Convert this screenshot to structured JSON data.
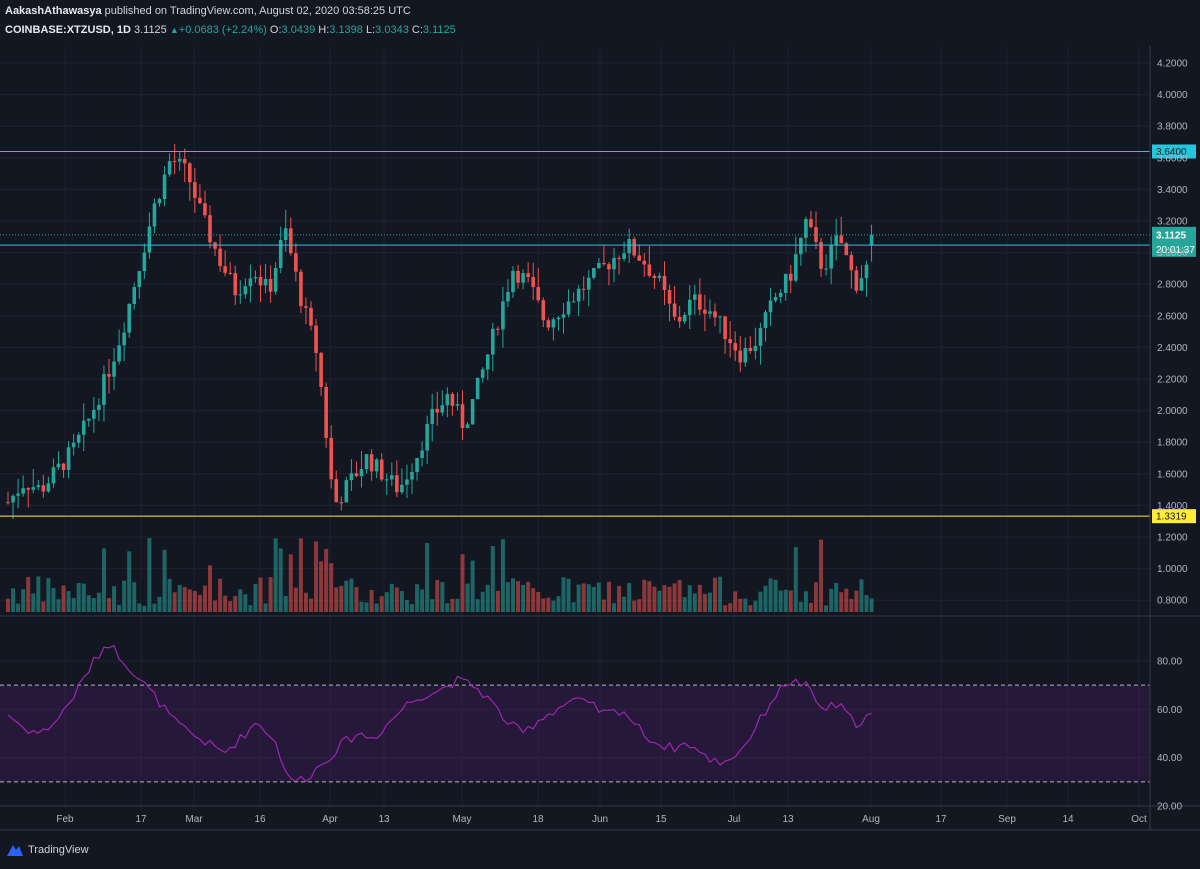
{
  "header": {
    "author": "AakashAthawasya",
    "published_text": " published on TradingView.com, August 02, 2020 03:58:25 UTC",
    "symbol": "COINBASE:XTZUSD, 1D",
    "last": "3.1125",
    "change": "+0.0683 (+2.24%)",
    "open_label": "O:",
    "open": "3.0439",
    "high_label": "H:",
    "high": "3.1398",
    "low_label": "L:",
    "low": "3.0343",
    "close_label": "C:",
    "close": "3.1125"
  },
  "footer": {
    "brand": "TradingView",
    "icon": "tradingview-logo-icon"
  },
  "colors": {
    "background": "#131722",
    "up": "#26a69a",
    "down": "#ef5350",
    "resistance": "#26c6da",
    "support": "#ffeb3b",
    "rsi": "#9c27b0"
  },
  "chart_data": {
    "type": "candlestick",
    "symbol": "COINBASE:XTZUSD",
    "interval": "1D",
    "x_ticks": [
      "Feb",
      "17",
      "Mar",
      "16",
      "Apr",
      "13",
      "May",
      "18",
      "Jun",
      "15",
      "Jul",
      "13",
      "Aug",
      "17",
      "Sep",
      "14",
      "Oct"
    ],
    "price_ticks": [
      "4.2000",
      "4.0000",
      "3.8000",
      "3.6000",
      "3.4000",
      "3.2000",
      "3.0000",
      "2.8000",
      "2.6000",
      "2.4000",
      "2.2000",
      "2.0000",
      "1.8000",
      "1.6000",
      "1.4000",
      "1.2000",
      "1.0000",
      "0.8000"
    ],
    "price_range": [
      0.8,
      4.2
    ],
    "horizontal_levels": [
      {
        "value": 3.64,
        "label": "3.6400",
        "color": "#26c6da"
      },
      {
        "value": 3.0477,
        "label": "3.0477",
        "color": "#26c6da"
      },
      {
        "value": 1.3319,
        "label": "1.3319",
        "color": "#ffeb3b"
      }
    ],
    "last_price": {
      "value": 3.1125,
      "label": "3.1125",
      "countdown": "20:01:37"
    },
    "price_path": [
      1.42,
      1.55,
      1.5,
      1.62,
      1.75,
      1.95,
      2.2,
      2.5,
      2.9,
      3.3,
      3.6,
      3.5,
      3.2,
      2.95,
      2.75,
      2.9,
      2.75,
      3.15,
      2.7,
      2.35,
      1.4,
      1.55,
      1.7,
      1.6,
      1.5,
      1.7,
      1.95,
      2.1,
      1.9,
      2.2,
      2.55,
      2.9,
      2.8,
      2.55,
      2.65,
      2.75,
      2.85,
      2.95,
      3.05,
      2.95,
      2.8,
      2.55,
      2.7,
      2.65,
      2.5,
      2.35,
      2.45,
      2.7,
      2.85,
      3.2,
      2.9,
      3.1,
      2.8,
      2.95
    ],
    "rsi": {
      "levels": [
        70,
        30
      ],
      "ticks": [
        "80.00",
        "60.00",
        "40.00",
        "20.00"
      ],
      "range": [
        20,
        100
      ],
      "path": [
        58,
        52,
        50,
        56,
        66,
        78,
        88,
        80,
        72,
        64,
        55,
        50,
        46,
        42,
        48,
        55,
        48,
        30,
        32,
        38,
        45,
        50,
        48,
        55,
        62,
        66,
        68,
        72,
        70,
        64,
        55,
        50,
        56,
        60,
        64,
        62,
        58,
        60,
        52,
        46,
        44,
        46,
        40,
        38,
        42,
        52,
        64,
        72,
        70,
        60,
        62,
        54,
        58
      ]
    }
  }
}
